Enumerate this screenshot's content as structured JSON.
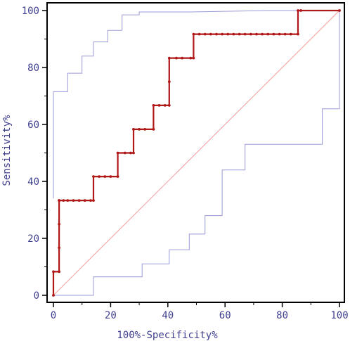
{
  "chart_data": {
    "type": "line",
    "xlabel": "100%-Specificity%",
    "ylabel": "Sensitivity%",
    "xlim": [
      0,
      100
    ],
    "ylim": [
      0,
      100
    ],
    "x_ticks": [
      "0",
      "20",
      "40",
      "60",
      "80",
      "100"
    ],
    "y_ticks": [
      "0",
      "20",
      "40",
      "60",
      "80",
      "100"
    ],
    "grid": false,
    "colors": {
      "roc": "#b01818",
      "confidence_band": "#9a9ad8",
      "reference": "#f2a0a0",
      "axis": "#000000",
      "text": "#404090"
    },
    "series": [
      {
        "role": "roc",
        "x": [
          0,
          0,
          2,
          2,
          2,
          2,
          2,
          2,
          3.5,
          5,
          7,
          9,
          11,
          13,
          14,
          14,
          16,
          18,
          20,
          22.5,
          22.5,
          25,
          27,
          28,
          28,
          30,
          32,
          35,
          35,
          37,
          39,
          40.5,
          40.5,
          40.5,
          43,
          45,
          48,
          49,
          49,
          51,
          53,
          55,
          57,
          59,
          61,
          63,
          65,
          67,
          69,
          71,
          73,
          75,
          77,
          79,
          81,
          83,
          85.5,
          85.5,
          86.5,
          100
        ],
        "y": [
          0,
          8.3,
          8.3,
          16.7,
          25,
          33.3,
          33.3,
          33.3,
          33.3,
          33.3,
          33.3,
          33.3,
          33.3,
          33.3,
          33.3,
          41.7,
          41.7,
          41.7,
          41.7,
          41.7,
          50,
          50,
          50,
          50,
          58.3,
          58.3,
          58.3,
          58.3,
          66.7,
          66.7,
          66.7,
          66.7,
          75,
          83.3,
          83.3,
          83.3,
          83.3,
          83.3,
          91.7,
          91.7,
          91.7,
          91.7,
          91.7,
          91.7,
          91.7,
          91.7,
          91.7,
          91.7,
          91.7,
          91.7,
          91.7,
          91.7,
          91.7,
          91.7,
          91.7,
          91.7,
          91.7,
          100,
          100,
          100
        ]
      },
      {
        "role": "upper_confidence",
        "x": [
          0,
          0,
          5,
          5,
          10,
          10,
          14,
          14,
          19,
          19,
          24,
          24,
          30,
          30,
          48,
          75,
          100
        ],
        "y": [
          34,
          71.5,
          71.5,
          78,
          78,
          84,
          84,
          89,
          89,
          93,
          93,
          98.5,
          98.5,
          99.5,
          99.5,
          100,
          100
        ]
      },
      {
        "role": "lower_confidence",
        "x": [
          0,
          14,
          14,
          31,
          31,
          40.5,
          40.5,
          47.5,
          47.5,
          53,
          53,
          59,
          59,
          67,
          67,
          94,
          94,
          100,
          100
        ],
        "y": [
          0,
          0,
          6.5,
          6.5,
          11,
          11,
          16,
          16,
          21.5,
          21.5,
          28,
          28,
          44,
          44,
          53,
          53,
          65.5,
          65.5,
          100
        ]
      },
      {
        "role": "reference",
        "x": [
          0,
          100
        ],
        "y": [
          0,
          100
        ]
      }
    ]
  }
}
